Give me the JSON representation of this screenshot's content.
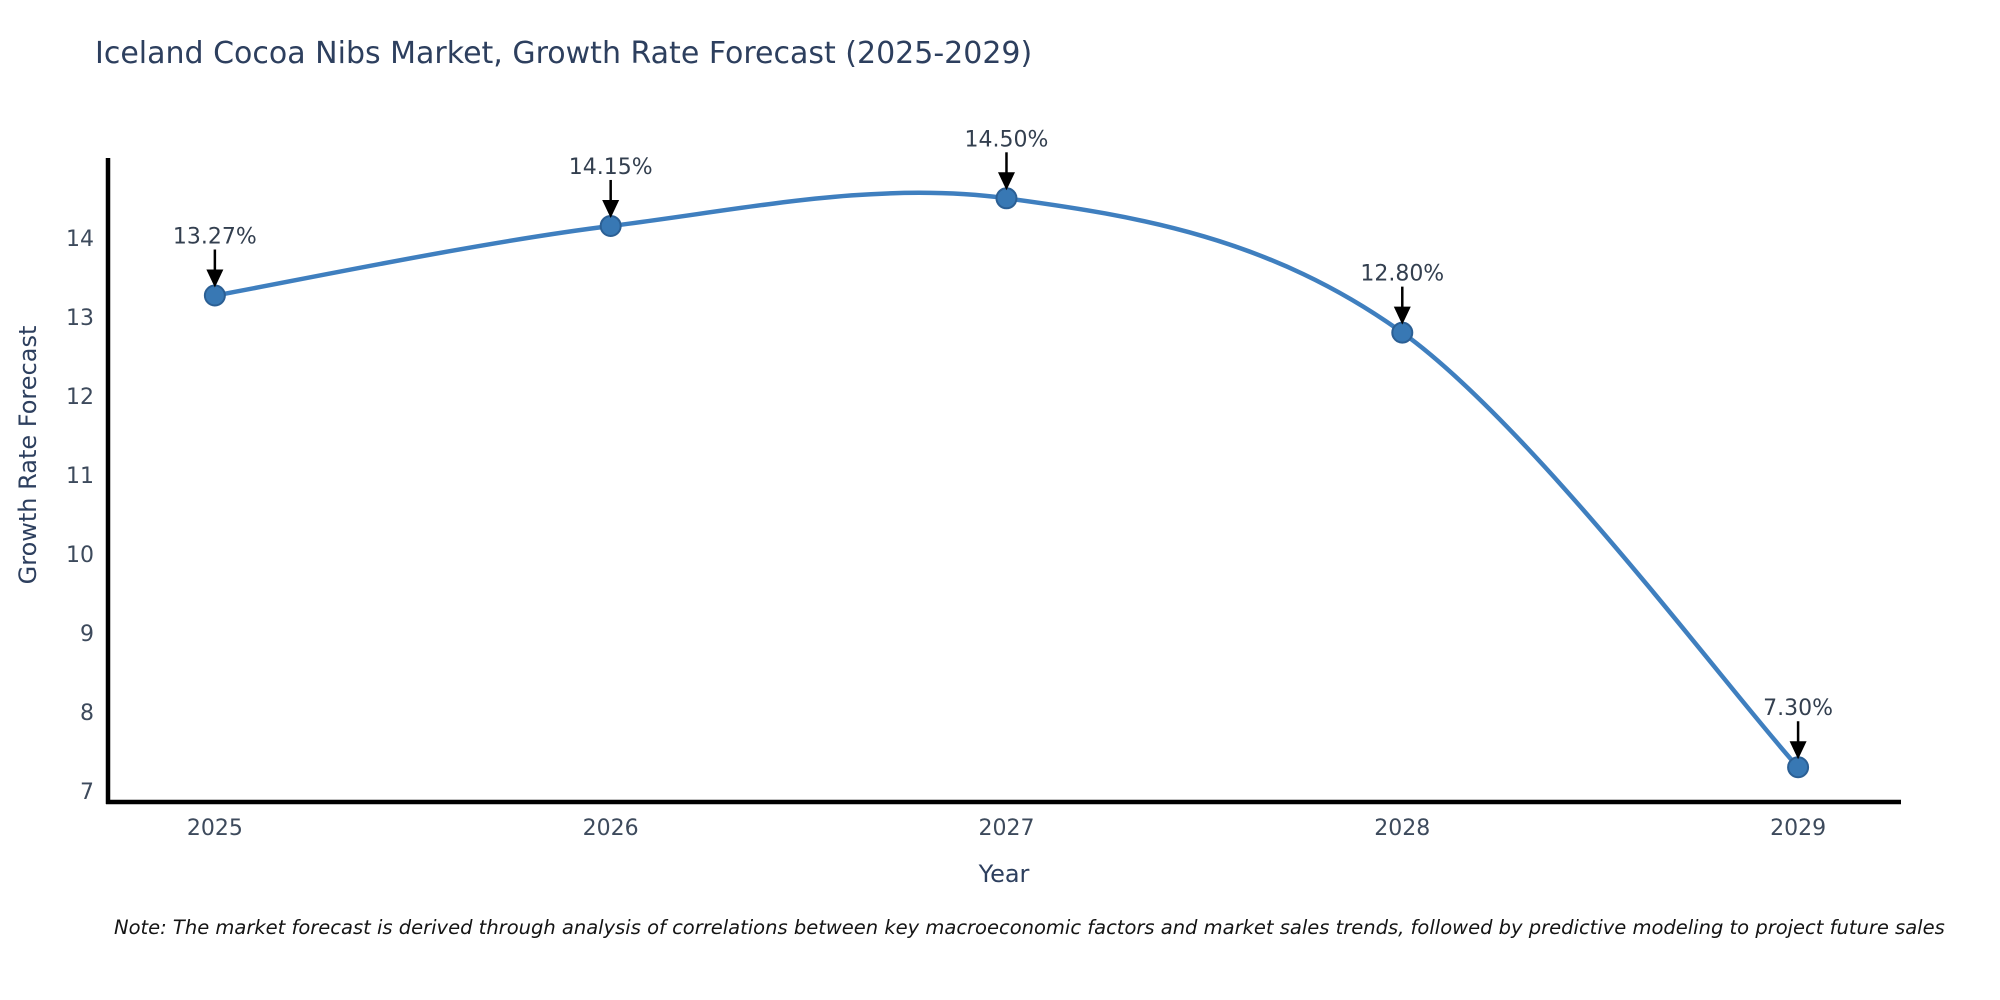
{
  "title": "Iceland Cocoa Nibs Market, Growth Rate Forecast (2025-2029)",
  "note": "Note: The market forecast is derived through analysis of correlations between key macroeconomic factors and market sales trends, followed by predictive modeling to project future sales",
  "colors": {
    "line": "#3f7fbf",
    "marker_fill": "#3878b4",
    "marker_border": "#2b5f94",
    "axis_line": "#000000",
    "title_text": "#2d3f5e",
    "tick_text": "#3d4a5c",
    "annotation_text": "#333f4f",
    "arrow": "#000000"
  },
  "chart_data": {
    "type": "line",
    "title": "Iceland Cocoa Nibs Market, Growth Rate Forecast (2025-2029)",
    "xlabel": "Year",
    "ylabel": "Growth Rate Forecast",
    "x": [
      2025,
      2026,
      2027,
      2028,
      2029
    ],
    "y": [
      13.27,
      14.15,
      14.5,
      12.8,
      7.3
    ],
    "point_labels": [
      "13.27%",
      "14.15%",
      "14.50%",
      "12.80%",
      "7.30%"
    ],
    "x_ticks": [
      "2025",
      "2026",
      "2027",
      "2028",
      "2029"
    ],
    "y_ticks": [
      7,
      8,
      9,
      10,
      11,
      12,
      13,
      14
    ],
    "x_range": [
      2024.73,
      2029.26
    ],
    "y_range": [
      6.86,
      15.01
    ],
    "line_shape": "spline",
    "markers": true,
    "grid": false,
    "legend": false
  }
}
